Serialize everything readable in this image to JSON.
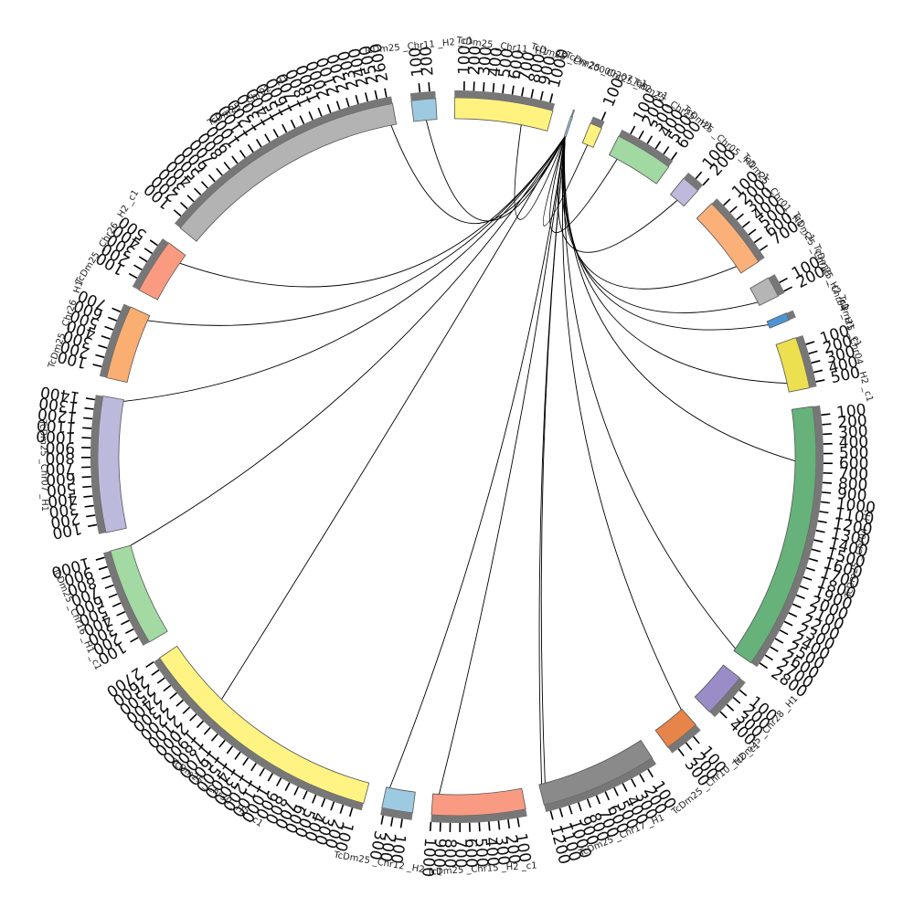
{
  "chart_data": {
    "type": "circos",
    "units": "kb",
    "chromosomes": [
      {
        "id": "c1",
        "name": "TcDm25 _Chr11 _H1 _c1",
        "length": 1050,
        "color": "#fff27f"
      },
      {
        "id": "c2",
        "name": "TcDm25 _Chr20000207_c1",
        "length": 20,
        "color": "#a6d0e6"
      },
      {
        "id": "c3",
        "name": "TcDm25 _Chr25 _H2 _c1",
        "length": 130,
        "color": "#fff27f"
      },
      {
        "id": "c4",
        "name": "TcDm25 _Chr25 _H1",
        "length": 620,
        "color": "#a2d8a2"
      },
      {
        "id": "c5",
        "name": "TcDm25 _Chr05 _H1 _c1",
        "length": 200,
        "color": "#bfb9dc"
      },
      {
        "id": "c6",
        "name": "TcDm25 _Chr01 _H1 _c1",
        "length": 790,
        "color": "#fbb07a"
      },
      {
        "id": "c7",
        "name": "TcDm25 _Chr28 _H2 _c1",
        "length": 220,
        "color": "#b5b5b5"
      },
      {
        "id": "c8",
        "name": "TcDm25 _Chr04 _H1 _c1",
        "length": 80,
        "color": "#4d94d6"
      },
      {
        "id": "c9",
        "name": "TcDm25 _Chr04 _H2 _c1",
        "length": 550,
        "color": "#ecdf50"
      },
      {
        "id": "c10",
        "name": "TcDm25 _Chr04 _H1",
        "length": 2850,
        "color": "#66b27a"
      },
      {
        "id": "c11",
        "name": "TcDm25 _Chr28 _H1",
        "length": 480,
        "color": "#9a8cc6"
      },
      {
        "id": "c12",
        "name": "TcDm25 _Chr10 _H2 _c1",
        "length": 380,
        "color": "#e6844a"
      },
      {
        "id": "c13",
        "name": "TcDm25 _Chr17 _H1",
        "length": 1250,
        "color": "#8a8a8a"
      },
      {
        "id": "c14",
        "name": "TcDm25 _Chr15 _H2 _c1",
        "length": 1000,
        "color": "#f99b83"
      },
      {
        "id": "c15",
        "name": "TcDm25 _Chr12 _H2 _c1",
        "length": 330,
        "color": "#9ecae1"
      },
      {
        "id": "c16",
        "name": "TcDm25 _Chr30 _H2 _c1",
        "length": 2700,
        "color": "#fff483"
      },
      {
        "id": "c17",
        "name": "TcDm25 _Chr16 _H1 _c1",
        "length": 1050,
        "color": "#a3d9a3"
      },
      {
        "id": "c18",
        "name": "TcDm25 _Chr07 _H1",
        "length": 1450,
        "color": "#bcbadc"
      },
      {
        "id": "c19",
        "name": "TcDm25 _Chr26 _H1",
        "length": 790,
        "color": "#fbae72"
      },
      {
        "id": "c20",
        "name": "TcDm25 _Chr26 _H2 _c1",
        "length": 590,
        "color": "#f99a81"
      },
      {
        "id": "c21",
        "name": "TcDm25 _Chr02 _H1",
        "length": 2650,
        "color": "#b3b3b3"
      },
      {
        "id": "c22",
        "name": "TcDm25 _Chr11 _H2 _c1",
        "length": 260,
        "color": "#9ecae1"
      }
    ],
    "links": [
      {
        "from": "c2",
        "to": "c22",
        "from_pos": 10,
        "to_pos": 140
      },
      {
        "from": "c2",
        "to": "c1",
        "from_pos": 10,
        "to_pos": 750
      },
      {
        "from": "c2",
        "to": "c21",
        "from_pos": 10,
        "to_pos": 2590
      },
      {
        "from": "c2",
        "to": "c20",
        "from_pos": 10,
        "to_pos": 480
      },
      {
        "from": "c2",
        "to": "c19",
        "from_pos": 10,
        "to_pos": 730
      },
      {
        "from": "c2",
        "to": "c18",
        "from_pos": 10,
        "to_pos": 1430
      },
      {
        "from": "c2",
        "to": "c17",
        "from_pos": 10,
        "to_pos": 1050
      },
      {
        "from": "c2",
        "to": "c16",
        "from_pos": 10,
        "to_pos": 1920
      },
      {
        "from": "c2",
        "to": "c15",
        "from_pos": 10,
        "to_pos": 290
      },
      {
        "from": "c2",
        "to": "c14",
        "from_pos": 10,
        "to_pos": 930
      },
      {
        "from": "c2",
        "to": "c13",
        "from_pos": 10,
        "to_pos": 1220
      },
      {
        "from": "c2",
        "to": "c13",
        "from_pos": 10,
        "to_pos": 1180
      },
      {
        "from": "c2",
        "to": "c12",
        "from_pos": 10,
        "to_pos": 10
      },
      {
        "from": "c2",
        "to": "c10",
        "from_pos": 10,
        "to_pos": 2820
      },
      {
        "from": "c2",
        "to": "c10",
        "from_pos": 10,
        "to_pos": 580
      },
      {
        "from": "c2",
        "to": "c9",
        "from_pos": 10,
        "to_pos": 450
      },
      {
        "from": "c2",
        "to": "c8",
        "from_pos": 10,
        "to_pos": 40
      },
      {
        "from": "c2",
        "to": "c7",
        "from_pos": 10,
        "to_pos": 180
      },
      {
        "from": "c2",
        "to": "c6",
        "from_pos": 10,
        "to_pos": 700
      },
      {
        "from": "c2",
        "to": "c5",
        "from_pos": 10,
        "to_pos": 100
      },
      {
        "from": "c2",
        "to": "c4",
        "from_pos": 10,
        "to_pos": 100
      },
      {
        "from": "c2",
        "to": "c3",
        "from_pos": 10,
        "to_pos": 60
      }
    ]
  }
}
